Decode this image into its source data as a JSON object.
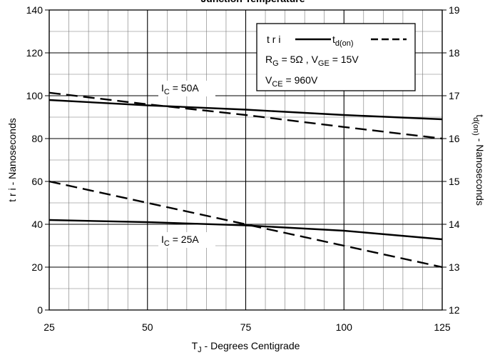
{
  "chart_data": {
    "type": "line",
    "title": "Junction Temperature",
    "xlabel": [
      "T",
      "J",
      " - Degrees Centigrade"
    ],
    "ylabel": [
      "t r i - Nanoseconds"
    ],
    "y2label": [
      "t",
      "d(on)",
      " - Nanoseconds"
    ],
    "x": [
      25,
      50,
      75,
      100,
      125
    ],
    "xlim": [
      25,
      125
    ],
    "xticks": [
      25,
      50,
      75,
      100,
      125
    ],
    "ylim": [
      0,
      140
    ],
    "yticks": [
      0,
      20,
      40,
      60,
      80,
      100,
      120,
      140
    ],
    "y2lim": [
      12,
      19
    ],
    "y2ticks": [
      12,
      13,
      14,
      15,
      16,
      17,
      18,
      19
    ],
    "grid": true,
    "series": [
      {
        "color": "#000000",
        "dash": false,
        "values": [
          98,
          95.5,
          93.5,
          91,
          89
        ]
      },
      {
        "color": "#000000",
        "dash": true,
        "axis": "y2",
        "values": [
          17.07,
          16.8,
          16.55,
          16.27,
          16.0
        ]
      },
      {
        "color": "#000000",
        "dash": false,
        "values": [
          42,
          41,
          39.5,
          37,
          33
        ]
      },
      {
        "color": "#000000",
        "dash": true,
        "axis": "y2",
        "values": [
          15,
          14.5,
          14,
          13.5,
          13
        ]
      }
    ],
    "legend": [
      {
        "name": [
          "t r i"
        ],
        "dash": false
      },
      {
        "name": [
          "t",
          "d(on)"
        ],
        "dash": true
      }
    ],
    "annotations": [
      [
        "R",
        "G",
        " = 5Ω ,  V",
        "GE",
        " = 15V"
      ],
      [
        "V",
        "CE",
        " = 960V"
      ],
      [
        "I",
        "C",
        " = 50A"
      ],
      [
        "I",
        "C",
        " = 25A"
      ]
    ]
  }
}
